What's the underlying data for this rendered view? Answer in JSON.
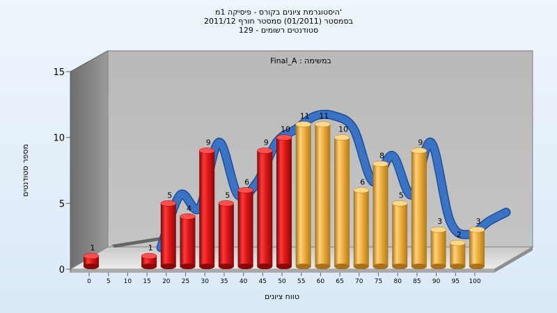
{
  "chart_data": {
    "type": "bar",
    "title_lines": [
      "היסטוגרמת ציונים בקורס - פיסיקה 1מ'",
      "בסמסטר  (01/2011)  סמסטר חורף 2011/12",
      "סטודנטים רשומים - 129"
    ],
    "legend_label": "Final_A : במשימה",
    "xlabel": "טווח ציונים",
    "ylabel": "מספר סטודנטים",
    "ylim": [
      0,
      15
    ],
    "yticks": [
      0,
      5,
      10,
      15
    ],
    "categories": [
      "0",
      "5",
      "10",
      "15",
      "20",
      "25",
      "30",
      "35",
      "40",
      "45",
      "50",
      "55",
      "60",
      "65",
      "70",
      "75",
      "80",
      "85",
      "90",
      "95",
      "100"
    ],
    "values": [
      1,
      null,
      null,
      1,
      5,
      4,
      9,
      5,
      6,
      9,
      10,
      11,
      11,
      10,
      6,
      8,
      5,
      9,
      3,
      2,
      3
    ],
    "bar_colors": {
      "below_55": "#e01818",
      "from_55": "#f0b040"
    },
    "trend_color": "#3a72c4",
    "grid": false
  }
}
